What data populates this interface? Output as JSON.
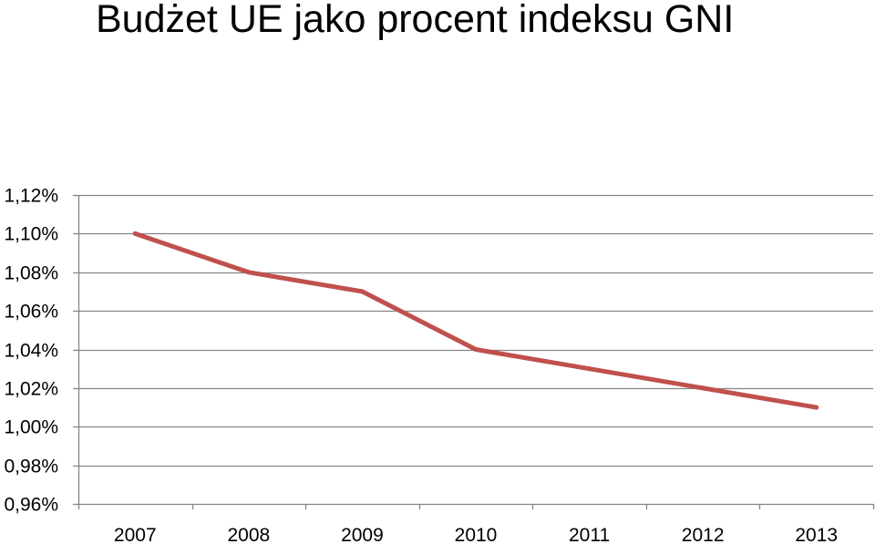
{
  "chart_data": {
    "type": "line",
    "title": "Budżet UE jako procent indeksu GNI",
    "xlabel": "",
    "ylabel": "",
    "categories": [
      "2007",
      "2008",
      "2009",
      "2010",
      "2011",
      "2012",
      "2013"
    ],
    "series": [
      {
        "values": [
          1.1,
          1.08,
          1.07,
          1.04,
          1.03,
          1.02,
          1.01
        ],
        "color": "#C0504D"
      }
    ],
    "ylim": [
      0.96,
      1.12
    ],
    "y_ticks": [
      0.96,
      0.98,
      1.0,
      1.02,
      1.04,
      1.06,
      1.08,
      1.1,
      1.12
    ],
    "y_tick_labels": [
      "0,96%",
      "0,98%",
      "1,00%",
      "1,02%",
      "1,04%",
      "1,06%",
      "1,08%",
      "1,10%",
      "1,12%"
    ],
    "grid": true,
    "legend": "none",
    "colors": {
      "line": "#C0504D",
      "grid": "#868686",
      "axis": "#868686"
    }
  }
}
